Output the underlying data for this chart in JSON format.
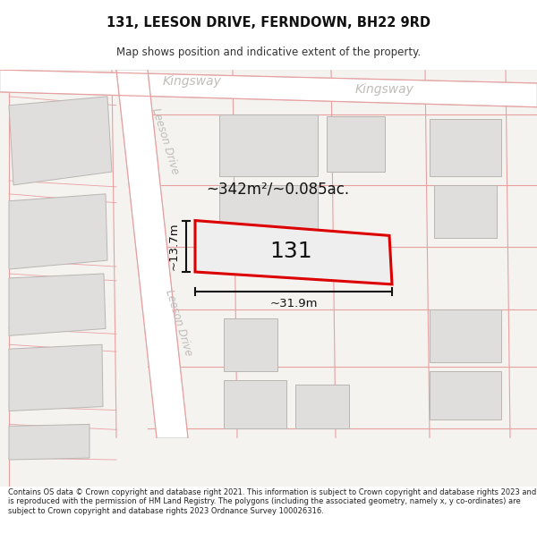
{
  "title": "131, LEESON DRIVE, FERNDOWN, BH22 9RD",
  "subtitle": "Map shows position and indicative extent of the property.",
  "footer": "Contains OS data © Crown copyright and database right 2021. This information is subject to Crown copyright and database rights 2023 and is reproduced with the permission of HM Land Registry. The polygons (including the associated geometry, namely x, y co-ordinates) are subject to Crown copyright and database rights 2023 Ordnance Survey 100026316.",
  "area_text": "~342m²/~0.085ac.",
  "number_text": "131",
  "dim_width": "~31.9m",
  "dim_height": "~13.7m",
  "road_label1": "Kingsway",
  "road_label2": "Kingsway",
  "street_label1": "Leeson Drive",
  "street_label2": "Leeson Drive",
  "map_bg": "#f5f3f0",
  "building_fill": "#e0dedd",
  "building_edge": "#b8b5b2",
  "road_fill": "#ffffff",
  "lot_line_color": "#e8a0a0",
  "plot_edge": "#dd0000",
  "dim_color": "#111111",
  "road_text_color": "#c0bcb8",
  "text_color": "#111111"
}
